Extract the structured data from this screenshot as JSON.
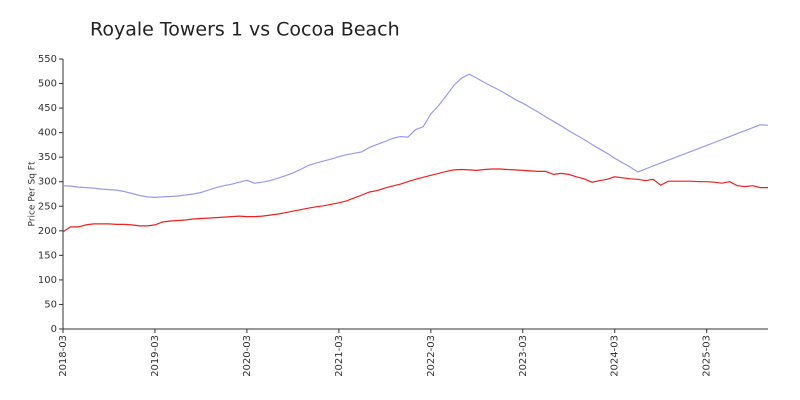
{
  "chart_data": {
    "type": "line",
    "title": "Royale Towers 1 vs Cocoa Beach",
    "y_label": "Price Per Sq Ft",
    "categories": [
      "2018-03",
      null,
      null,
      null,
      null,
      null,
      null,
      null,
      null,
      null,
      null,
      null,
      "2019-03",
      null,
      null,
      null,
      null,
      null,
      null,
      null,
      null,
      null,
      null,
      null,
      "2020-03",
      null,
      null,
      null,
      null,
      null,
      null,
      null,
      null,
      null,
      null,
      null,
      "2021-03",
      null,
      null,
      null,
      null,
      null,
      null,
      null,
      null,
      null,
      null,
      null,
      "2022-03",
      null,
      null,
      null,
      null,
      null,
      null,
      null,
      null,
      null,
      null,
      null,
      "2023-03",
      null,
      null,
      null,
      null,
      null,
      null,
      null,
      null,
      null,
      null,
      null,
      "2024-03",
      null,
      null,
      null,
      null,
      null,
      null,
      null,
      null,
      null,
      null,
      null,
      "2025-03",
      null,
      null,
      null,
      null,
      null,
      null,
      null,
      null
    ],
    "series": [
      {
        "color": "#9a9aee",
        "values": [
          292,
          291,
          289,
          288,
          287,
          285,
          284,
          283,
          280,
          276,
          272,
          269,
          268,
          269,
          270,
          271,
          273,
          275,
          278,
          283,
          288,
          292,
          295,
          299,
          303,
          297,
          299,
          302,
          307,
          312,
          318,
          325,
          333,
          338,
          342,
          346,
          351,
          355,
          358,
          361,
          370,
          376,
          382,
          388,
          392,
          391,
          406,
          412,
          438,
          455,
          475,
          496,
          511,
          519,
          511,
          502,
          494,
          486,
          477,
          468,
          460,
          451,
          442,
          432,
          423,
          414,
          404,
          395,
          386,
          376,
          367,
          358,
          348,
          339,
          330,
          320,
          326,
          332,
          338,
          344,
          350,
          356,
          362,
          368,
          374,
          380,
          386,
          392,
          398,
          404,
          410,
          416,
          415
        ]
      },
      {
        "color": "#ee2020",
        "values": [
          198,
          208,
          208,
          212,
          214,
          214,
          214,
          213,
          213,
          212,
          210,
          210,
          212,
          218,
          220,
          221,
          222,
          224,
          225,
          226,
          227,
          228,
          229,
          230,
          229,
          229,
          230,
          232,
          234,
          237,
          240,
          243,
          246,
          249,
          251,
          254,
          257,
          261,
          267,
          273,
          279,
          282,
          287,
          291,
          295,
          300,
          305,
          309,
          313,
          317,
          321,
          324,
          325,
          324,
          323,
          325,
          326,
          326,
          325,
          324,
          323,
          322,
          321,
          321,
          315,
          317,
          315,
          310,
          306,
          299,
          302,
          305,
          310,
          308,
          306,
          305,
          302,
          305,
          293,
          301,
          301,
          301,
          301,
          300,
          300,
          299,
          297,
          300,
          292,
          290,
          292,
          288,
          288
        ]
      }
    ],
    "ylim": [
      0,
      550
    ],
    "yticks": [
      0,
      50,
      100,
      150,
      200,
      250,
      300,
      350,
      400,
      450,
      500,
      550
    ]
  }
}
